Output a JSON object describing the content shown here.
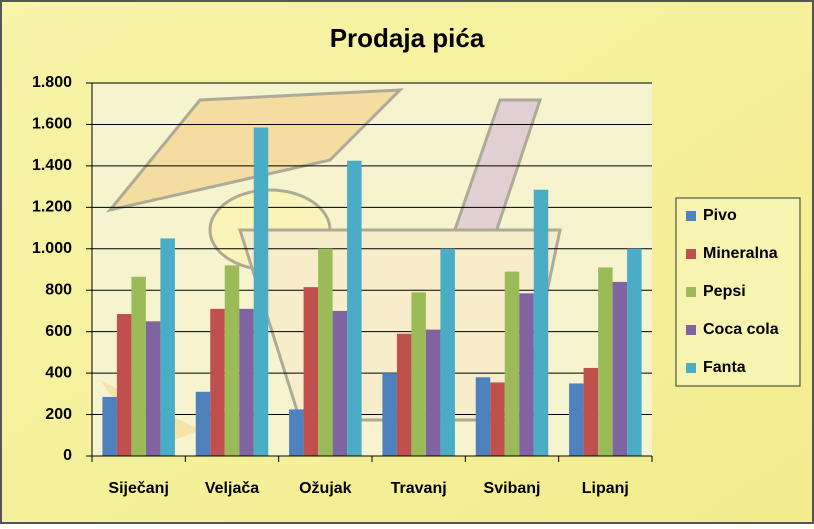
{
  "chart_data": {
    "type": "bar",
    "title": "Prodaja pića",
    "categories": [
      "Siječanj",
      "Veljača",
      "Ožujak",
      "Travanj",
      "Svibanj",
      "Lipanj"
    ],
    "series": [
      {
        "name": "Pivo",
        "color": "#4f81bd",
        "values": [
          285,
          310,
          225,
          400,
          380,
          350
        ]
      },
      {
        "name": "Mineralna",
        "color": "#c0504d",
        "values": [
          685,
          710,
          815,
          590,
          355,
          425
        ]
      },
      {
        "name": "Pepsi",
        "color": "#9bbb59",
        "values": [
          865,
          920,
          1000,
          790,
          890,
          910
        ]
      },
      {
        "name": "Coca cola",
        "color": "#8064a2",
        "values": [
          650,
          710,
          700,
          610,
          785,
          840
        ]
      },
      {
        "name": "Fanta",
        "color": "#4bacc6",
        "values": [
          1050,
          1585,
          1425,
          1000,
          1285,
          1000
        ]
      }
    ],
    "ylim": [
      0,
      1800
    ],
    "yticks": [
      0,
      200,
      400,
      600,
      800,
      {
        "value": 1000,
        "label": "1.000"
      },
      {
        "value": 1200,
        "label": "1.200"
      },
      {
        "value": 1400,
        "label": "1.400"
      },
      {
        "value": 1600,
        "label": "1.600"
      },
      {
        "value": 1800,
        "label": "1.800"
      }
    ],
    "grid": true,
    "legend": "right"
  }
}
